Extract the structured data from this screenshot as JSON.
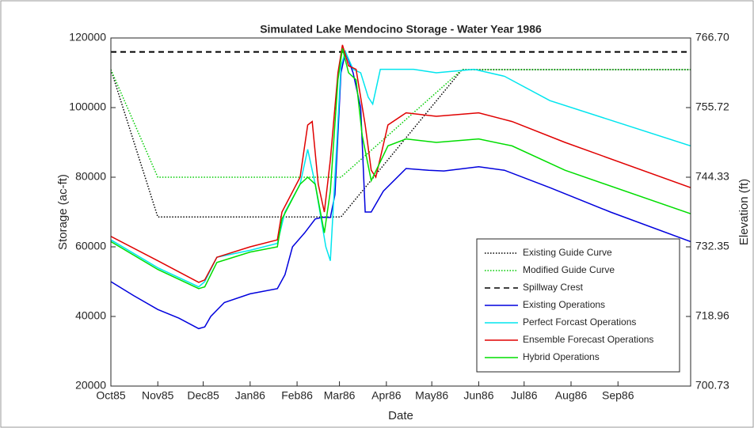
{
  "chart_data": {
    "type": "line",
    "title": "Simulated Lake Mendocino Storage - Water Year 1986",
    "xlabel": "Date",
    "ylabel": "Storage (ac-ft)",
    "y2label": "Elevation (ft)",
    "xlim": [
      0,
      383
    ],
    "xticks": [
      {
        "value": 0,
        "label": "Oct85"
      },
      {
        "value": 31,
        "label": "Nov85"
      },
      {
        "value": 61,
        "label": "Dec85"
      },
      {
        "value": 92,
        "label": "Jan86"
      },
      {
        "value": 123,
        "label": "Feb86"
      },
      {
        "value": 151,
        "label": "Mar86"
      },
      {
        "value": 182,
        "label": "Apr86"
      },
      {
        "value": 212,
        "label": "May86"
      },
      {
        "value": 243,
        "label": "Jun86"
      },
      {
        "value": 273,
        "label": "Jul86"
      },
      {
        "value": 304,
        "label": "Aug86"
      },
      {
        "value": 335,
        "label": "Sep86"
      }
    ],
    "ylim": [
      20000,
      120000
    ],
    "yticks": [
      20000,
      40000,
      60000,
      80000,
      100000,
      120000
    ],
    "y2ticks": [
      {
        "value": 700.73,
        "label": "700.73"
      },
      {
        "value": 718.96,
        "label": "718.96"
      },
      {
        "value": 732.35,
        "label": "732.35"
      },
      {
        "value": 744.33,
        "label": "744.33"
      },
      {
        "value": 755.72,
        "label": "755.72"
      },
      {
        "value": 766.7,
        "label": "766.70"
      }
    ],
    "legend": "lower right",
    "series": [
      {
        "name": "Existing Guide Curve",
        "color": "#000000",
        "dash": "dotted",
        "x": [
          0,
          31,
          152,
          232,
          383
        ],
        "values": [
          110900,
          68600,
          68600,
          110900,
          110900
        ]
      },
      {
        "name": "Modified Guide Curve",
        "color": "#00cc00",
        "dash": "dotted",
        "x": [
          0,
          31,
          152,
          232,
          383
        ],
        "values": [
          110900,
          80000,
          80000,
          110900,
          110900
        ]
      },
      {
        "name": "Spillway Crest",
        "color": "#000000",
        "dash": "dashed",
        "x": [
          0,
          383
        ],
        "values": [
          116000,
          116000
        ]
      },
      {
        "name": "Existing Operations",
        "color": "#0000dd",
        "dash": "solid",
        "x": [
          0,
          15,
          31,
          45,
          58,
          62,
          66,
          75,
          92,
          110,
          115,
          120,
          128,
          135,
          140,
          145,
          148,
          152,
          155,
          160,
          165,
          168,
          172,
          180,
          195,
          210,
          220,
          243,
          260,
          290,
          330,
          383
        ],
        "values": [
          50000,
          46000,
          42000,
          39500,
          36500,
          37000,
          40000,
          44000,
          46500,
          48000,
          52000,
          60000,
          64000,
          68000,
          68500,
          68400,
          75000,
          110000,
          116000,
          110000,
          100000,
          70000,
          70000,
          76000,
          82500,
          82000,
          81800,
          83000,
          82000,
          77000,
          70000,
          61500
        ]
      },
      {
        "name": "Perfect Forcast Operations",
        "color": "#00e5ee",
        "dash": "solid",
        "x": [
          0,
          31,
          58,
          62,
          70,
          92,
          110,
          115,
          125,
          130,
          135,
          142,
          145,
          148,
          152,
          155,
          160,
          165,
          170,
          173,
          178,
          200,
          215,
          240,
          260,
          290,
          383
        ],
        "values": [
          62000,
          54000,
          48500,
          50000,
          57000,
          59000,
          61000,
          70000,
          78000,
          88000,
          78000,
          60000,
          56000,
          80000,
          112000,
          116000,
          111000,
          110000,
          103000,
          101000,
          111000,
          111000,
          110000,
          111000,
          109000,
          102000,
          89000
        ]
      },
      {
        "name": "Ensemble Forecast Operations",
        "color": "#e00000",
        "dash": "solid",
        "x": [
          0,
          31,
          58,
          62,
          70,
          92,
          110,
          113,
          125,
          130,
          133,
          137,
          141,
          145,
          150,
          153,
          157,
          162,
          168,
          172,
          175,
          183,
          195,
          215,
          243,
          265,
          300,
          383
        ],
        "values": [
          63000,
          56000,
          49800,
          50500,
          57000,
          60000,
          62000,
          70000,
          80000,
          95000,
          96000,
          78000,
          70000,
          85000,
          110000,
          118000,
          112000,
          111000,
          95000,
          82000,
          80000,
          95000,
          98500,
          97500,
          98500,
          96000,
          90000,
          77000
        ]
      },
      {
        "name": "Hybrid Operations",
        "color": "#00dd00",
        "dash": "solid",
        "x": [
          0,
          31,
          58,
          62,
          70,
          92,
          110,
          113,
          125,
          130,
          135,
          141,
          145,
          150,
          153,
          157,
          162,
          166,
          172,
          183,
          195,
          215,
          243,
          265,
          300,
          383
        ],
        "values": [
          61500,
          53500,
          48000,
          48500,
          55500,
          58500,
          60000,
          68000,
          78000,
          80000,
          78000,
          64000,
          76000,
          108000,
          117000,
          110000,
          108000,
          92000,
          79000,
          89000,
          91000,
          90000,
          91000,
          89000,
          82000,
          69500
        ]
      }
    ]
  }
}
